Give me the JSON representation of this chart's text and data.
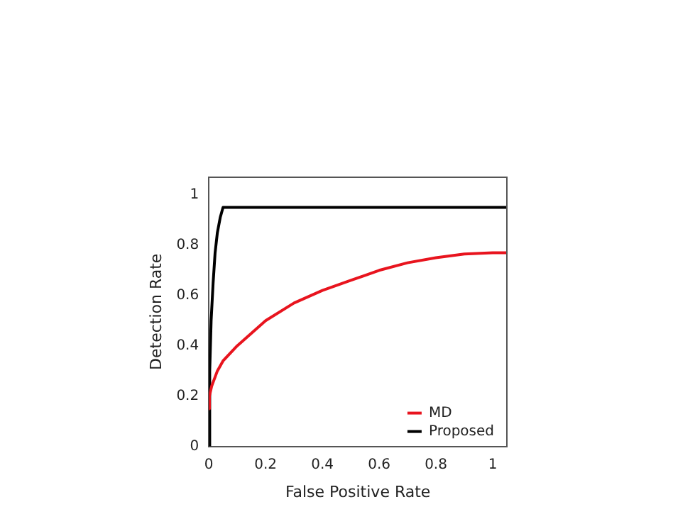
{
  "chart_data": {
    "type": "line",
    "xlabel": "False Positive Rate",
    "ylabel": "Detection Rate",
    "xlim": [
      0,
      1.05
    ],
    "ylim": [
      0,
      1.07
    ],
    "xticks": [
      0,
      0.2,
      0.4,
      0.6,
      0.8,
      1
    ],
    "yticks": [
      0,
      0.2,
      0.4,
      0.6,
      0.8,
      1
    ],
    "grid": false,
    "legend": "bottom right",
    "marker": "none",
    "line_style": "solid",
    "series": [
      {
        "name": "MD",
        "color": "#e8141e",
        "x": [
          0,
          0.002,
          0.01,
          0.03,
          0.05,
          0.1,
          0.15,
          0.2,
          0.3,
          0.4,
          0.5,
          0.6,
          0.7,
          0.8,
          0.9,
          1,
          1.05
        ],
        "values": [
          0.15,
          0.2,
          0.24,
          0.3,
          0.34,
          0.4,
          0.45,
          0.5,
          0.57,
          0.62,
          0.66,
          0.7,
          0.73,
          0.75,
          0.765,
          0.77,
          0.77
        ]
      },
      {
        "name": "Proposed",
        "color": "#000000",
        "x": [
          0,
          0.003,
          0.008,
          0.015,
          0.022,
          0.03,
          0.04,
          0.05,
          0.06,
          0.2,
          0.5,
          1,
          1.05
        ],
        "values": [
          0,
          0.3,
          0.5,
          0.65,
          0.77,
          0.85,
          0.91,
          0.95,
          0.95,
          0.95,
          0.95,
          0.95,
          0.95
        ]
      }
    ]
  }
}
